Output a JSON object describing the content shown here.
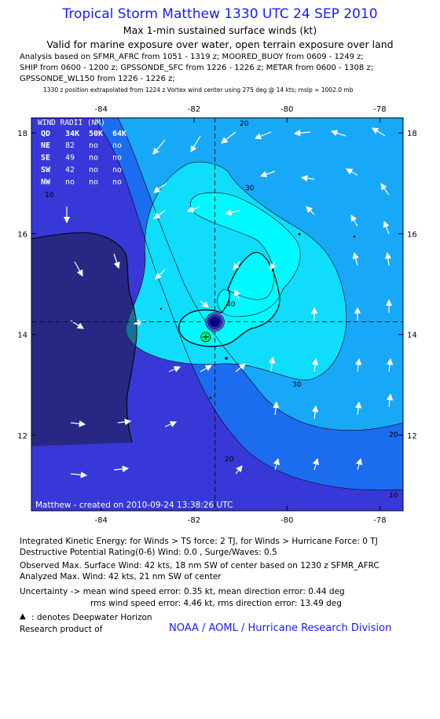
{
  "header": {
    "title": "Tropical Storm Matthew 1330 UTC 24 SEP 2010",
    "subtitle1": "Max 1-min sustained surface winds (kt)",
    "subtitle2": "Valid for marine exposure over water, open terrain exposure over land",
    "analysis1": "Analysis based on SFMR_AFRC from 1051 - 1319 z; MOORED_BUOY from 0609 - 1249 z;",
    "analysis2": "SHIP from 0600 - 1200 z; GPSSONDE_SFC from 1226 - 1226 z; METAR from 0600 - 1308 z;",
    "analysis3": "GPSSONDE_WL150 from 1226 - 1226 z;",
    "position_note": "1330 z position extrapolated from 1224 z Vortex wind center using 275 deg @ 14 kts; mslp = 1002.0 mb"
  },
  "map": {
    "lon_ticks": [
      "-84",
      "-82",
      "-80",
      "-78"
    ],
    "lat_ticks": [
      "18",
      "16",
      "14",
      "12"
    ],
    "lon_range": [
      -85.5,
      -77.5
    ],
    "lat_range": [
      10.5,
      18.3
    ],
    "center": {
      "lon": -81.55,
      "lat": 14.25
    },
    "max_wind_marker": {
      "lon": -81.75,
      "lat": 13.95
    },
    "contour_labels": [
      "20",
      "30",
      "40",
      "30",
      "20",
      "20",
      "10",
      "10"
    ],
    "created_label": "Matthew - created on 2010-09-24 13:38:26 UTC",
    "colors": {
      "lt10": "#3838d8",
      "c10_20": "#1c6cf0",
      "c20_30": "#18a8f8",
      "c30_40": "#10dcfc",
      "c40_50": "#00f8ff",
      "center": "#00008b"
    },
    "wind_radii": {
      "title": "WIND RADII (NM)",
      "header": [
        "QD",
        "34K",
        "50K",
        "64K"
      ],
      "rows": [
        [
          "NE",
          "82",
          "no",
          "no"
        ],
        [
          "SE",
          "49",
          "no",
          "no"
        ],
        [
          "SW",
          "42",
          "no",
          "no"
        ],
        [
          "NW",
          "no",
          "no",
          "no"
        ]
      ]
    }
  },
  "footer": {
    "ike": "Integrated Kinetic Energy:  for Winds > TS force: 2 TJ,  for Winds > Hurricane Force: 0 TJ",
    "dpr": "Destructive Potential Rating(0-6)   Wind: 0.0 , Surge/Waves: 0.5",
    "obs_max": "Observed Max. Surface Wind: 42 kts, 18 nm SW of center based on 1230 z SFMR_AFRC",
    "analyzed_max": "Analyzed Max. Wind: 42 kts, 21 nm SW of center",
    "uncertainty1": "Uncertainty -> mean wind speed error: 0.35 kt,   mean direction error: 0.44 deg",
    "uncertainty2": "rms wind speed error: 4.46 kt,   rms direction error: 13.49 deg",
    "deepwater": ": denotes Deepwater Horizon",
    "research": "Research product of",
    "noaa": "NOAA / AOML / Hurricane Research Division"
  }
}
